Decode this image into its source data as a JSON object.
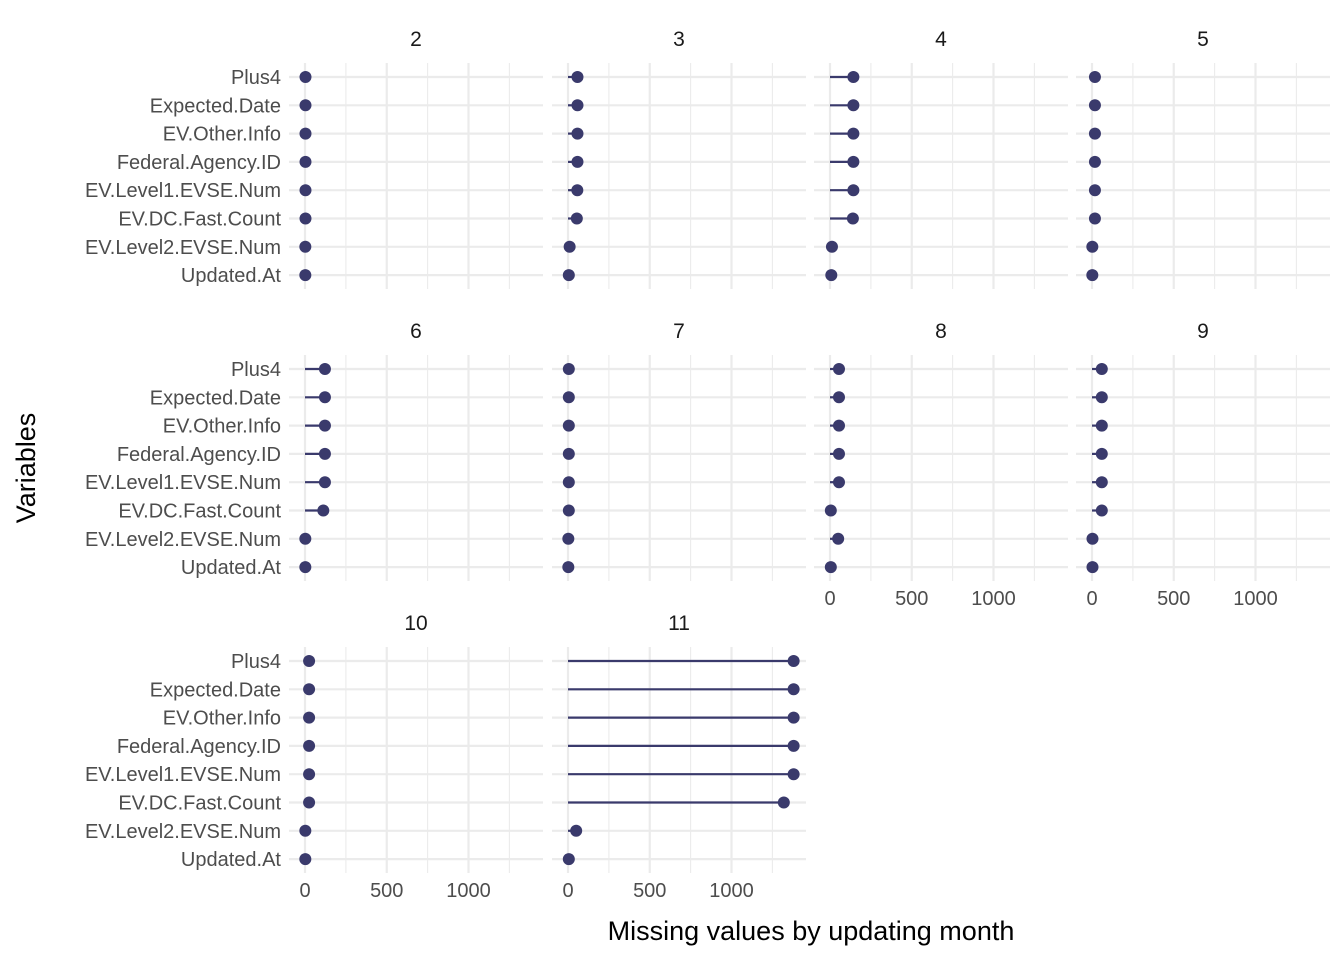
{
  "chart_data": {
    "type": "lollipop",
    "facet_by": "updating month",
    "xlabel": "Missing values by updating month",
    "ylabel": "Variables",
    "xlim": [
      0,
      1400
    ],
    "x_ticks": [
      0,
      500,
      1000
    ],
    "grid": true,
    "variables": [
      "Plus4",
      "Expected.Date",
      "EV.Other.Info",
      "Federal.Agency.ID",
      "EV.Level1.EVSE.Num",
      "EV.DC.Fast.Count",
      "EV.Level2.EVSE.Num",
      "Updated.At"
    ],
    "panels": [
      {
        "month": "2",
        "values": [
          3,
          3,
          3,
          3,
          3,
          3,
          2,
          2
        ]
      },
      {
        "month": "3",
        "values": [
          58,
          58,
          58,
          58,
          57,
          54,
          10,
          5
        ]
      },
      {
        "month": "4",
        "values": [
          143,
          143,
          143,
          143,
          143,
          140,
          12,
          8
        ]
      },
      {
        "month": "5",
        "values": [
          18,
          18,
          18,
          18,
          18,
          18,
          2,
          2
        ]
      },
      {
        "month": "6",
        "values": [
          122,
          122,
          122,
          122,
          122,
          112,
          2,
          2
        ]
      },
      {
        "month": "7",
        "values": [
          5,
          5,
          5,
          5,
          5,
          5,
          2,
          2
        ]
      },
      {
        "month": "8",
        "values": [
          55,
          55,
          55,
          55,
          55,
          5,
          50,
          5
        ]
      },
      {
        "month": "9",
        "values": [
          60,
          60,
          60,
          60,
          60,
          60,
          3,
          3
        ]
      },
      {
        "month": "10",
        "values": [
          25,
          25,
          25,
          25,
          25,
          25,
          2,
          2
        ]
      },
      {
        "month": "11",
        "values": [
          1380,
          1380,
          1380,
          1380,
          1380,
          1320,
          50,
          5
        ]
      }
    ]
  },
  "colors": {
    "point": "#3a3a6c",
    "grid": "#ebebeb"
  }
}
